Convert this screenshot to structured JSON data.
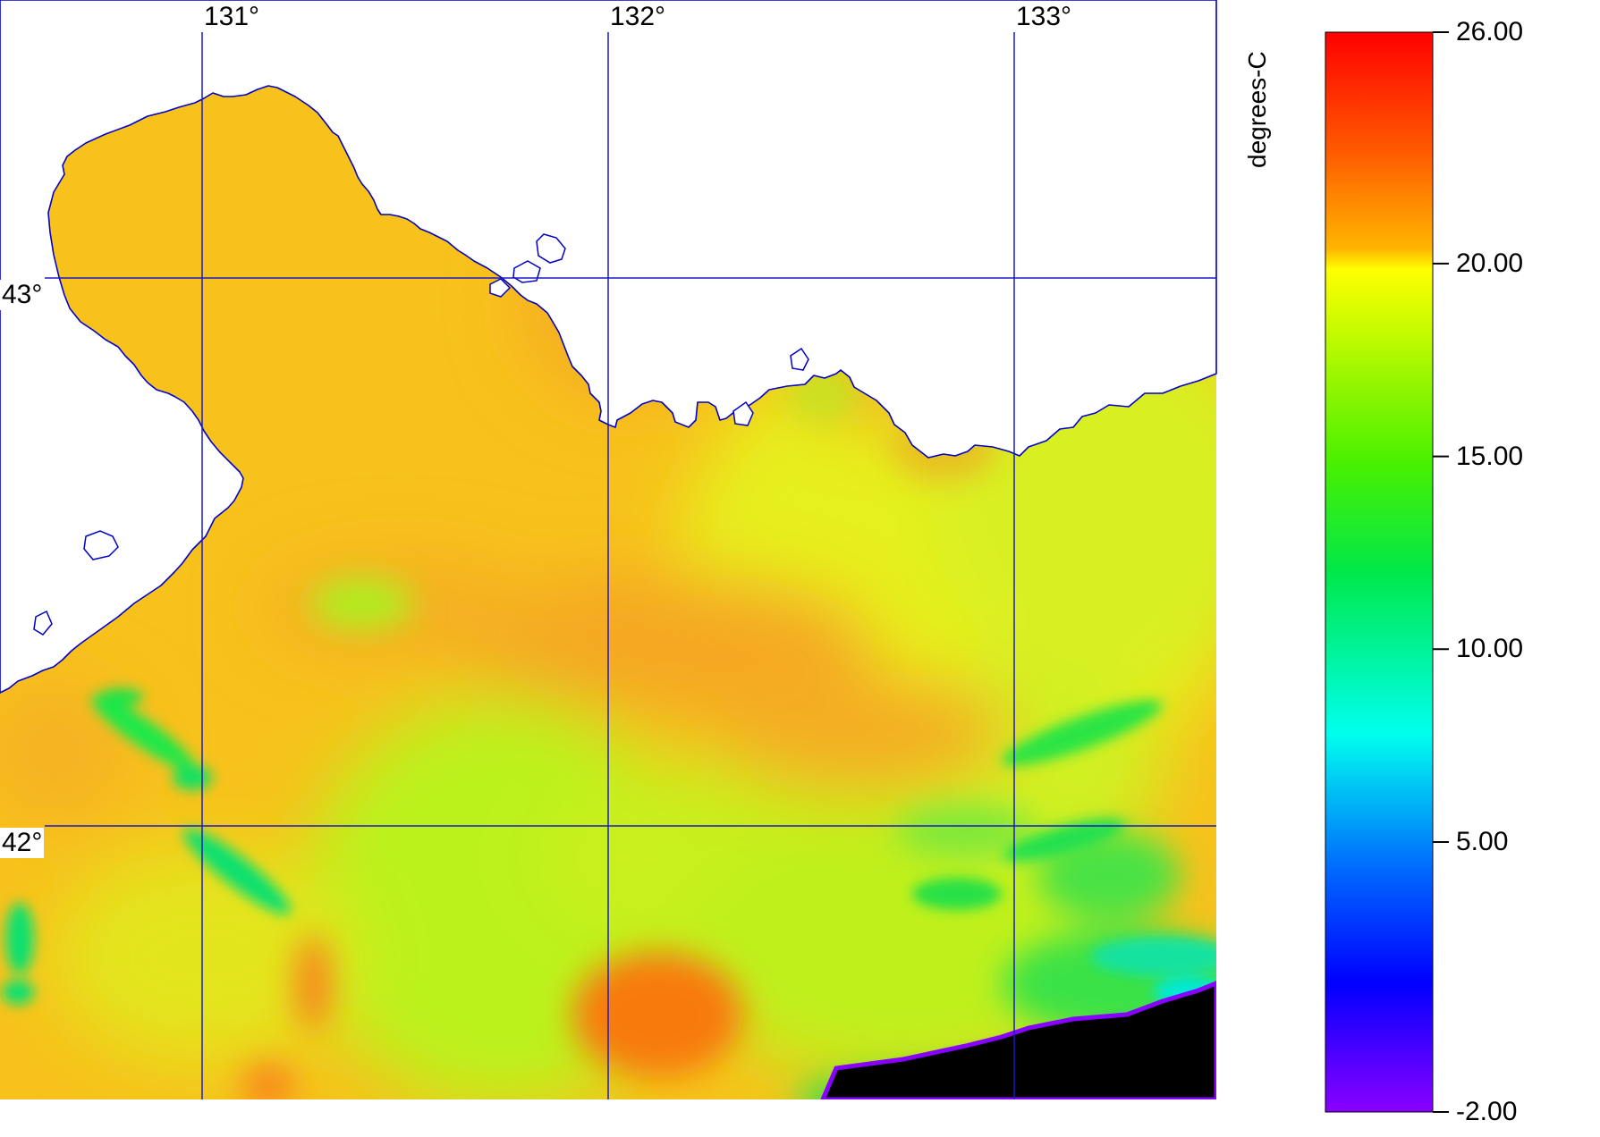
{
  "map": {
    "lon_labels": [
      "131°",
      "132°",
      "133°"
    ],
    "lat_labels": [
      "43°",
      "42°"
    ],
    "land_color": "#ffffff",
    "coast_color": "#0000c8",
    "grid_color": "#0000c8",
    "missing_color": "#000000"
  },
  "colorbar": {
    "title": "degrees-C",
    "min": -2.0,
    "max": 26.0,
    "tick_labels": [
      "26.00",
      "20.00",
      "15.00",
      "10.00",
      "5.00",
      "-2.00"
    ],
    "tick_values": [
      26,
      20,
      15,
      10,
      5,
      -2
    ],
    "palette": "rainbow"
  }
}
